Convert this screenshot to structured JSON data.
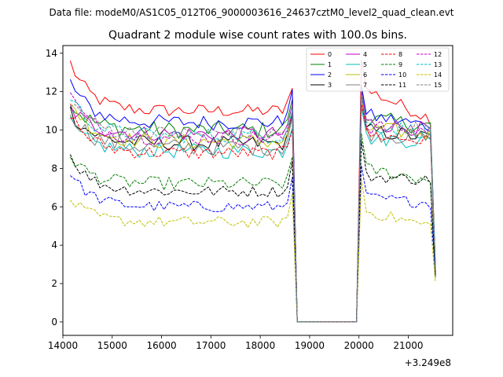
{
  "figure": {
    "suptitle": "Data file: modeM0/AS1C05_012T06_9000003616_24637cztM0_level2_quad_clean.evt"
  },
  "chart_data": {
    "type": "line",
    "title": "Quadrant 2 module wise count rates with 100.0s bins.",
    "xlabel": "",
    "ylabel": "",
    "x_offset_label": "+3.249e8",
    "xlim": [
      14000,
      21900
    ],
    "ylim": [
      -0.7,
      14.4
    ],
    "xticks": [
      14000,
      15000,
      16000,
      17000,
      18000,
      19000,
      20000,
      21000
    ],
    "yticks": [
      0,
      2,
      4,
      6,
      8,
      10,
      12,
      14
    ],
    "grid": false,
    "legend_placement": "top-right",
    "x_segments": [
      {
        "start": 14150,
        "end": 18650,
        "step": 100
      },
      {
        "start": 18750,
        "end": 19950,
        "step": 100
      },
      {
        "start": 20050,
        "end": 21550,
        "step": 100
      }
    ],
    "series": [
      {
        "name": "0",
        "color": "#ff0000",
        "dash": "solid",
        "base1": 11.0,
        "base3": 12.2,
        "start": 13.5,
        "end3": 10.6,
        "final": 2.6,
        "noise": 0.35
      },
      {
        "name": "1",
        "color": "#008000",
        "dash": "solid",
        "base1": 10.0,
        "base3": 10.6,
        "start": 11.4,
        "end3": 10.2,
        "final": 3.0,
        "noise": 0.45
      },
      {
        "name": "2",
        "color": "#0000ff",
        "dash": "solid",
        "base1": 10.4,
        "base3": 10.8,
        "start": 12.5,
        "end3": 10.2,
        "final": 2.8,
        "noise": 0.4
      },
      {
        "name": "3",
        "color": "#000000",
        "dash": "solid",
        "base1": 9.3,
        "base3": 10.0,
        "start": 11.0,
        "end3": 9.6,
        "final": 2.4,
        "noise": 0.4
      },
      {
        "name": "4",
        "color": "#bf00bf",
        "dash": "solid",
        "base1": 9.8,
        "base3": 10.4,
        "start": 11.2,
        "end3": 10.0,
        "final": 2.9,
        "noise": 0.4
      },
      {
        "name": "5",
        "color": "#00bfbf",
        "dash": "solid",
        "base1": 8.9,
        "base3": 9.6,
        "start": 10.3,
        "end3": 9.4,
        "final": 2.7,
        "noise": 0.4
      },
      {
        "name": "6",
        "color": "#bfbf00",
        "dash": "solid",
        "base1": 9.4,
        "base3": 10.1,
        "start": 11.6,
        "end3": 9.8,
        "final": 2.6,
        "noise": 0.4
      },
      {
        "name": "7",
        "color": "#808080",
        "dash": "solid",
        "base1": 9.1,
        "base3": 9.9,
        "start": 11.0,
        "end3": 9.5,
        "final": 2.5,
        "noise": 0.45
      },
      {
        "name": "8",
        "color": "#ff0000",
        "dash": "dashed",
        "base1": 8.8,
        "base3": 9.8,
        "start": 10.9,
        "end3": 9.4,
        "final": 2.5,
        "noise": 0.35
      },
      {
        "name": "9",
        "color": "#008000",
        "dash": "dashed",
        "base1": 7.2,
        "base3": 8.0,
        "start": 8.7,
        "end3": 7.4,
        "final": 2.3,
        "noise": 0.35
      },
      {
        "name": "10",
        "color": "#0000ff",
        "dash": "dashed",
        "base1": 6.0,
        "base3": 6.5,
        "start": 7.8,
        "end3": 6.2,
        "final": 2.5,
        "noise": 0.3
      },
      {
        "name": "11",
        "color": "#000000",
        "dash": "dashed",
        "base1": 6.8,
        "base3": 7.6,
        "start": 8.7,
        "end3": 7.4,
        "final": 2.4,
        "noise": 0.3
      },
      {
        "name": "12",
        "color": "#bf00bf",
        "dash": "dashed",
        "base1": 9.6,
        "base3": 10.2,
        "start": 11.9,
        "end3": 10.0,
        "final": 2.8,
        "noise": 0.4
      },
      {
        "name": "13",
        "color": "#00bfbf",
        "dash": "dashed",
        "base1": 9.7,
        "base3": 10.3,
        "start": 11.8,
        "end3": 9.9,
        "final": 2.8,
        "noise": 0.4
      },
      {
        "name": "14",
        "color": "#bfbf00",
        "dash": "dashed",
        "base1": 5.2,
        "base3": 5.8,
        "start": 6.4,
        "end3": 5.0,
        "final": 2.1,
        "noise": 0.3
      },
      {
        "name": "15",
        "color": "#808080",
        "dash": "dashed",
        "base1": 9.8,
        "base3": 10.4,
        "start": 11.6,
        "end3": 10.0,
        "final": 2.7,
        "noise": 0.4
      }
    ]
  }
}
